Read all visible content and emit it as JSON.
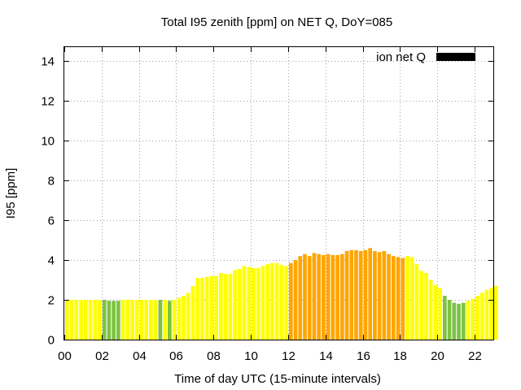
{
  "chart_data": {
    "type": "bar",
    "title": "Total I95 zenith [ppm] on NET Q, DoY=085",
    "xlabel": "Time of day UTC (15-minute intervals)",
    "ylabel": "I95 [ppm]",
    "ylim": [
      0,
      14.7
    ],
    "xlim": [
      0,
      23
    ],
    "y_ticks": [
      "0",
      "2",
      "4",
      "6",
      "8",
      "10",
      "12",
      "14"
    ],
    "x_ticks": [
      "00",
      "02",
      "04",
      "06",
      "08",
      "10",
      "12",
      "14",
      "16",
      "18",
      "20",
      "22"
    ],
    "grid": true,
    "legend": {
      "label": "ion net Q",
      "position": "top-right",
      "color": "#000000"
    },
    "colors": {
      "green": "#7dc242",
      "yellow": "#ffff00",
      "orange": "#ffa500"
    },
    "bar_interval_hours": 0.25,
    "values": [
      2.0,
      2.0,
      2.0,
      2.0,
      1.98,
      2.0,
      2.0,
      1.98,
      2.0,
      1.95,
      1.95,
      1.95,
      2.0,
      2.0,
      2.0,
      2.0,
      2.0,
      2.0,
      2.0,
      1.98,
      2.0,
      2.0,
      1.95,
      2.0,
      2.1,
      2.2,
      2.35,
      2.7,
      3.1,
      3.1,
      3.15,
      3.2,
      3.2,
      3.35,
      3.3,
      3.3,
      3.5,
      3.55,
      3.7,
      3.65,
      3.6,
      3.6,
      3.7,
      3.8,
      3.85,
      3.85,
      3.75,
      3.7,
      3.85,
      4.0,
      4.2,
      4.3,
      4.2,
      4.35,
      4.3,
      4.25,
      4.3,
      4.25,
      4.25,
      4.3,
      4.45,
      4.5,
      4.5,
      4.45,
      4.5,
      4.6,
      4.45,
      4.4,
      4.45,
      4.3,
      4.2,
      4.15,
      4.1,
      4.2,
      4.15,
      3.8,
      3.45,
      3.35,
      3.0,
      2.75,
      2.6,
      2.2,
      2.0,
      1.85,
      1.8,
      1.85,
      1.95,
      2.05,
      2.2,
      2.35,
      2.5,
      2.6,
      2.7
    ],
    "bar_colors": [
      "yellow",
      "yellow",
      "yellow",
      "yellow",
      "yellow",
      "yellow",
      "yellow",
      "yellow",
      "green",
      "green",
      "green",
      "green",
      "yellow",
      "yellow",
      "yellow",
      "yellow",
      "yellow",
      "yellow",
      "yellow",
      "yellow",
      "green",
      "yellow",
      "green",
      "yellow",
      "yellow",
      "yellow",
      "yellow",
      "yellow",
      "yellow",
      "yellow",
      "yellow",
      "yellow",
      "yellow",
      "yellow",
      "yellow",
      "yellow",
      "yellow",
      "yellow",
      "yellow",
      "yellow",
      "yellow",
      "yellow",
      "yellow",
      "yellow",
      "yellow",
      "yellow",
      "yellow",
      "yellow",
      "orange",
      "orange",
      "orange",
      "orange",
      "orange",
      "orange",
      "orange",
      "orange",
      "orange",
      "orange",
      "orange",
      "orange",
      "orange",
      "orange",
      "orange",
      "orange",
      "orange",
      "orange",
      "orange",
      "orange",
      "orange",
      "orange",
      "orange",
      "orange",
      "orange",
      "yellow",
      "yellow",
      "yellow",
      "yellow",
      "yellow",
      "yellow",
      "yellow",
      "yellow",
      "green",
      "green",
      "green",
      "green",
      "green",
      "yellow",
      "yellow",
      "yellow",
      "yellow",
      "yellow",
      "yellow",
      "yellow"
    ]
  }
}
